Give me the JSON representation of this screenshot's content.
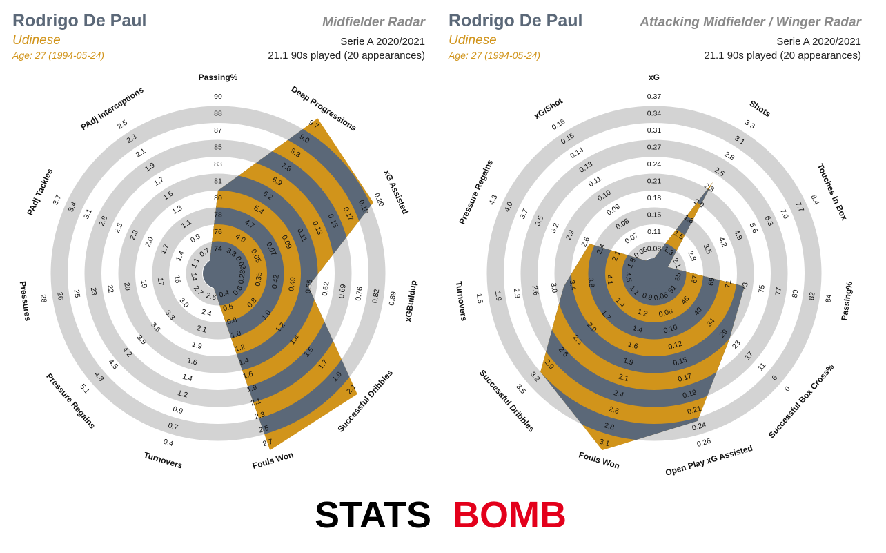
{
  "brand": {
    "logo_part1": "STATS",
    "logo_part2": "BOMB"
  },
  "colors": {
    "ring_grey": "#d3d3d3",
    "gold": "#d1941b",
    "slate": "#5b6878",
    "title_grey": "#8a8a8a"
  },
  "panels": [
    {
      "player": "Rodrigo De Paul",
      "team": "Udinese",
      "age": "Age: 27 (1994-05-24)",
      "radar_title": "Midfielder Radar",
      "season": "Serie A 2020/2021",
      "played": "21.1 90s played (20 appearances)"
    },
    {
      "player": "Rodrigo De Paul",
      "team": "Udinese",
      "age": "Age: 27 (1994-05-24)",
      "radar_title": "Attacking Midfielder / Winger Radar",
      "season": "Serie A 2020/2021",
      "played": "21.1 90s played (20 appearances)"
    }
  ],
  "chart_data": [
    {
      "type": "radar",
      "title": "Midfielder Radar",
      "metrics": [
        {
          "name": "Passing%",
          "ticks": [
            "74",
            "76",
            "78",
            "80",
            "81",
            "83",
            "85",
            "87",
            "88",
            "90"
          ],
          "value": 0.4
        },
        {
          "name": "Deep Progressions",
          "ticks": [
            "3.3",
            "4.0",
            "4.7",
            "5.4",
            "6.2",
            "6.9",
            "7.6",
            "8.3",
            "9.0",
            "9.7"
          ],
          "value": 1.0
        },
        {
          "name": "xG Assisted",
          "ticks": [
            "0.03",
            "0.05",
            "0.07",
            "0.09",
            "0.11",
            "0.13",
            "0.15",
            "0.17",
            "0.18",
            "0.20"
          ],
          "value": 0.92
        },
        {
          "name": "xGBuildup",
          "ticks": [
            "0.28",
            "0.35",
            "0.42",
            "0.49",
            "0.55",
            "0.62",
            "0.69",
            "0.76",
            "0.82",
            "0.89"
          ],
          "value": 0.45
        },
        {
          "name": "Successful Dribbles",
          "ticks": [
            "0.6",
            "0.8",
            "1.0",
            "1.2",
            "1.4",
            "1.5",
            "1.7",
            "1.9",
            "2.1"
          ],
          "value": 1.0
        },
        {
          "name": "Fouls Won",
          "ticks": [
            "0.4",
            "0.6",
            "0.8",
            "1.0",
            "1.2",
            "1.4",
            "1.6",
            "1.9",
            "2.1",
            "2.3",
            "2.5",
            "2.7"
          ],
          "value": 1.0
        },
        {
          "name": "Turnovers",
          "ticks": [
            "2.6",
            "2.4",
            "2.1",
            "1.9",
            "1.6",
            "1.4",
            "1.2",
            "0.9",
            "0.7",
            "0.4"
          ],
          "value": 0.0
        },
        {
          "name": "Pressure Regains",
          "ticks": [
            "2.7",
            "3.0",
            "3.3",
            "3.6",
            "3.9",
            "4.2",
            "4.5",
            "4.8",
            "5.1"
          ],
          "value": 0.0
        },
        {
          "name": "Pressures",
          "ticks": [
            "14",
            "16",
            "17",
            "19",
            "20",
            "22",
            "23",
            "25",
            "26",
            "28"
          ],
          "value": 0.0
        },
        {
          "name": "PAdj Tackles",
          "ticks": [
            "1.1",
            "1.4",
            "1.7",
            "2.0",
            "2.3",
            "2.5",
            "2.8",
            "3.1",
            "3.4",
            "3.7"
          ],
          "value": 0.0
        },
        {
          "name": "PAdj Interceptions",
          "ticks": [
            "0.7",
            "0.9",
            "1.1",
            "1.3",
            "1.5",
            "1.7",
            "1.9",
            "2.1",
            "2.3",
            "2.5"
          ],
          "value": 0.0
        },
        {
          "name": "Deep Progressions ",
          "ticks": [],
          "value": null
        }
      ]
    },
    {
      "type": "radar",
      "title": "Attacking Midfielder / Winger Radar",
      "metrics": [
        {
          "name": "xG",
          "ticks": [
            "0.08",
            "0.11",
            "0.15",
            "0.18",
            "0.21",
            "0.24",
            "0.27",
            "0.31",
            "0.34",
            "0.37"
          ],
          "value": 0.0
        },
        {
          "name": "Shots",
          "ticks": [
            "1.3",
            "1.5",
            "1.8",
            "2.0",
            "2.3",
            "2.5",
            "2.8",
            "3.1",
            "3.3"
          ],
          "value": 0.55
        },
        {
          "name": "Touches In Box",
          "ticks": [
            "2.1",
            "2.8",
            "3.5",
            "4.2",
            "4.9",
            "5.6",
            "6.3",
            "7.0",
            "7.7",
            "8.4"
          ],
          "value": 0.0
        },
        {
          "name": "Passing%",
          "ticks": [
            "65",
            "67",
            "69",
            "71",
            "73",
            "75",
            "77",
            "80",
            "82",
            "84"
          ],
          "value": 0.45
        },
        {
          "name": "Successful Box Cross%",
          "ticks": [
            "51",
            "46",
            "40",
            "34",
            "29",
            "23",
            "17",
            "11",
            "6",
            "0"
          ],
          "value": 0.5
        },
        {
          "name": "Open Play xG Assisted",
          "ticks": [
            "0.06",
            "0.08",
            "0.10",
            "0.12",
            "0.15",
            "0.17",
            "0.19",
            "0.21",
            "0.24",
            "0.26"
          ],
          "value": 0.82
        },
        {
          "name": "Fouls Won",
          "ticks": [
            "0.9",
            "1.2",
            "1.4",
            "1.6",
            "1.9",
            "2.1",
            "2.4",
            "2.6",
            "2.8",
            "3.1"
          ],
          "value": 1.0
        },
        {
          "name": "Successful Dribbles",
          "ticks": [
            "1.1",
            "1.4",
            "1.7",
            "2.0",
            "2.3",
            "2.6",
            "2.9",
            "3.2",
            "3.5"
          ],
          "value": 0.8
        },
        {
          "name": "Turnovers",
          "ticks": [
            "4.5",
            "4.1",
            "3.8",
            "3.4",
            "3.0",
            "2.6",
            "2.3",
            "1.9",
            "1.5"
          ],
          "value": 0.45
        },
        {
          "name": "Pressure Regains",
          "ticks": [
            "1.8",
            "2.1",
            "2.4",
            "2.6",
            "2.9",
            "3.2",
            "3.5",
            "3.7",
            "4.0",
            "4.3"
          ],
          "value": 0.33
        },
        {
          "name": "xG/Shot",
          "ticks": [
            "0.06",
            "0.07",
            "0.08",
            "0.09",
            "0.10",
            "0.11",
            "0.13",
            "0.14",
            "0.15",
            "0.16"
          ],
          "value": 0.0
        }
      ]
    }
  ]
}
